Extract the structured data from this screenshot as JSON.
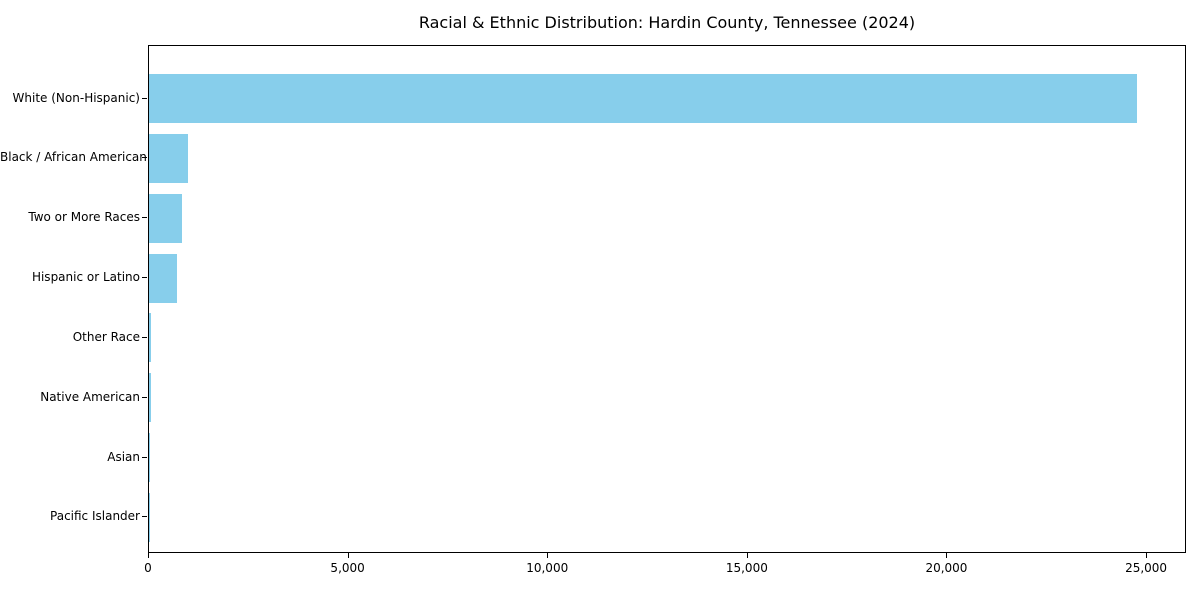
{
  "colors": {
    "bar": "#87CEEB",
    "axis": "#000000",
    "text": "#000000",
    "background": "#FFFFFF"
  },
  "chart_data": {
    "type": "bar",
    "orientation": "horizontal",
    "title": "Racial & Ethnic Distribution: Hardin County, Tennessee (2024)",
    "categories": [
      "White (Non-Hispanic)",
      "Black / African American",
      "Two or More Races",
      "Hispanic or Latino",
      "Other Race",
      "Native American",
      "Asian",
      "Pacific Islander"
    ],
    "values": [
      24750,
      970,
      830,
      700,
      50,
      40,
      25,
      10
    ],
    "xlabel": "",
    "ylabel": "",
    "xlim": [
      0,
      26000
    ],
    "xticks": [
      0,
      5000,
      10000,
      15000,
      20000,
      25000
    ],
    "xtick_labels": [
      "0",
      "5,000",
      "10,000",
      "15,000",
      "20,000",
      "25,000"
    ],
    "grid": false,
    "legend_position": "none",
    "bar_color_name": "skyblue"
  }
}
